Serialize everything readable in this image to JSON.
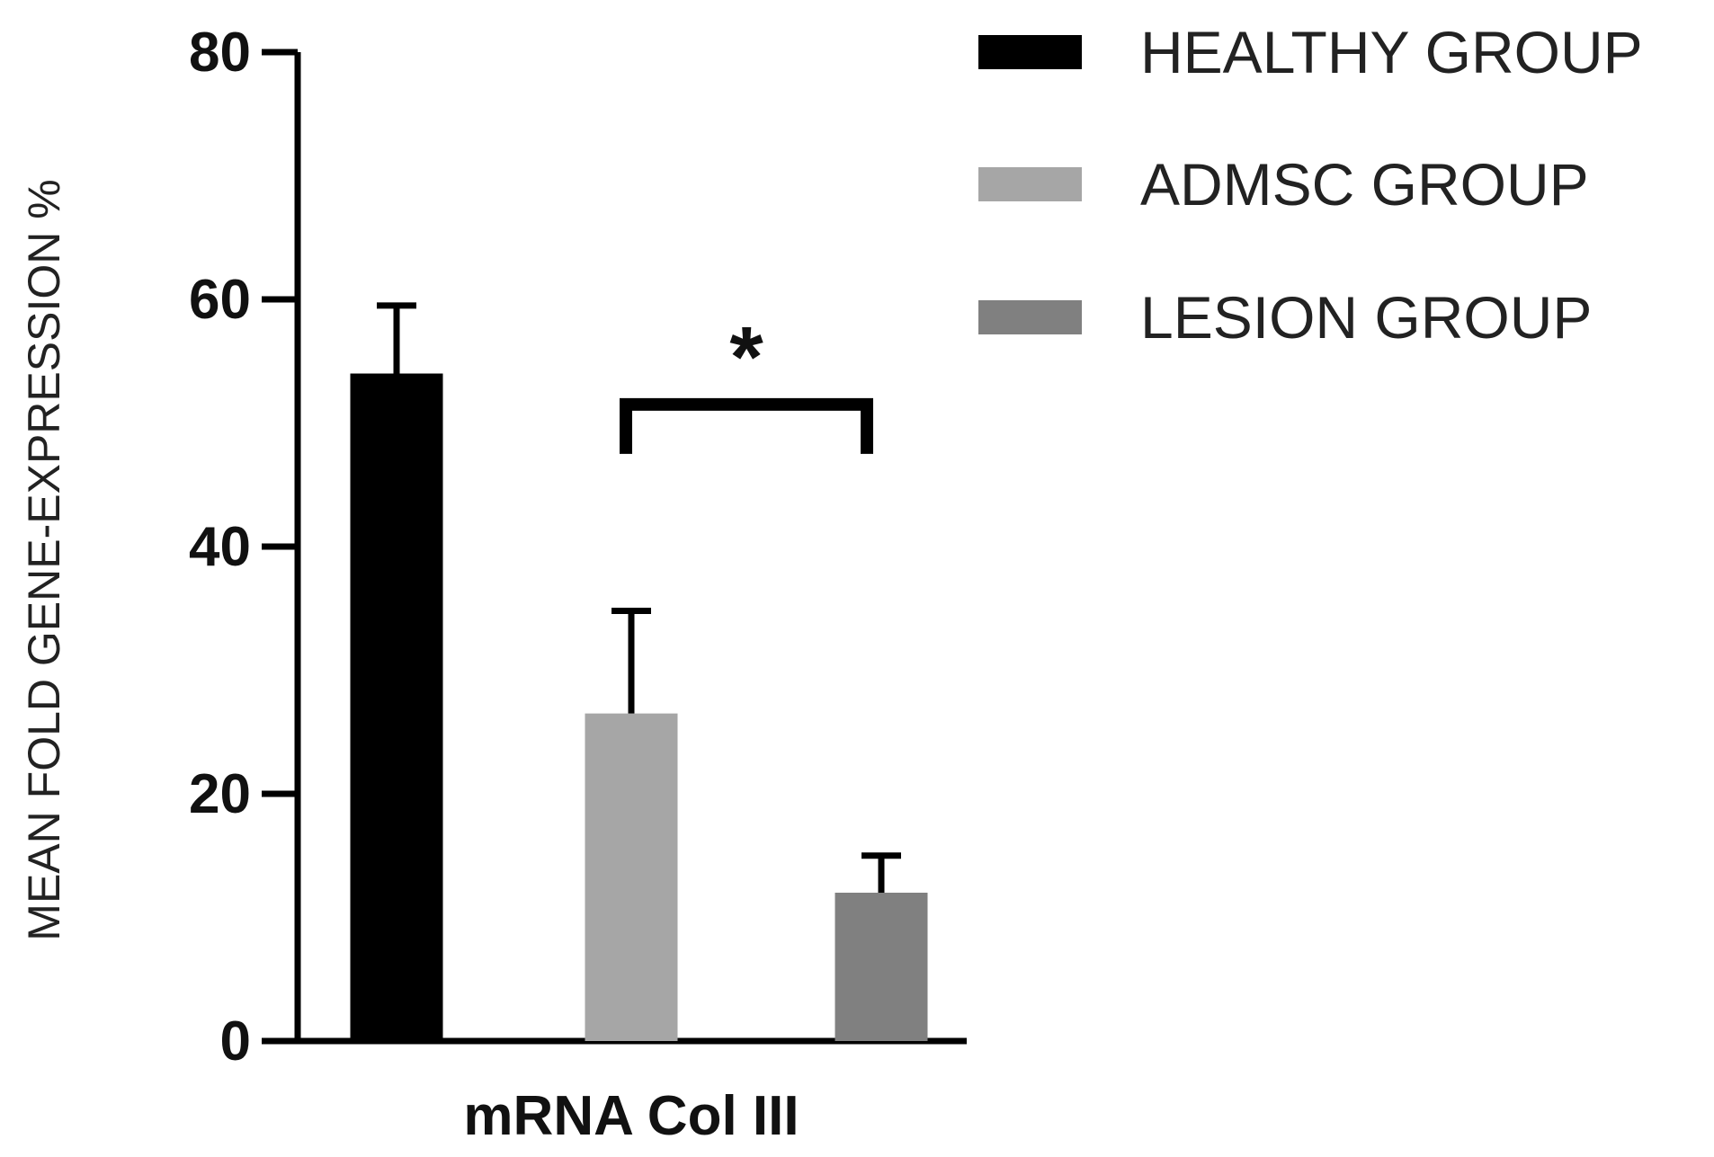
{
  "chart_data": {
    "type": "bar",
    "title": "",
    "xlabel": "",
    "ylabel": "MEAN FOLD GENE-EXPRESSION %",
    "categories": [
      "mRNA Col III"
    ],
    "ylim": [
      0,
      80
    ],
    "yticks": [
      0,
      20,
      40,
      60,
      80
    ],
    "ytick_labels": [
      "0",
      "20",
      "40",
      "60",
      "80"
    ],
    "grid": false,
    "legend_position": "top-right",
    "series": [
      {
        "name": "HEALTHY GROUP",
        "values": [
          54
        ],
        "error": [
          5.5
        ],
        "color": "#000000"
      },
      {
        "name": "ADMSC GROUP",
        "values": [
          26.5
        ],
        "error": [
          8.3
        ],
        "color": "#a6a6a6"
      },
      {
        "name": "LESION GROUP",
        "values": [
          12
        ],
        "error": [
          3.0
        ],
        "color": "#808080"
      }
    ],
    "annotations": [
      {
        "text": "*",
        "between": [
          "ADMSC GROUP",
          "LESION GROUP"
        ],
        "bracket_y": 51.5
      }
    ]
  }
}
